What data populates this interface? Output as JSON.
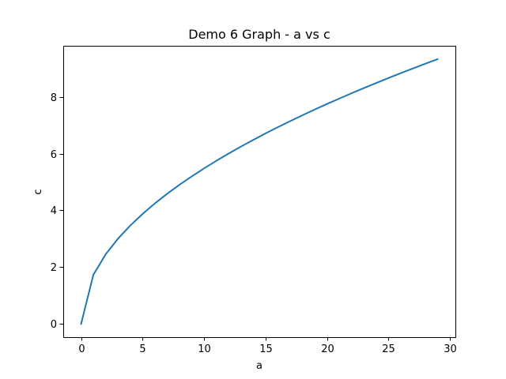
{
  "chart_data": {
    "type": "line",
    "title": "Demo 6 Graph - a vs c",
    "xlabel": "a",
    "ylabel": "c",
    "xlim": [
      -1.45,
      30.45
    ],
    "ylim": [
      -0.4665,
      9.7965
    ],
    "x_ticks": [
      0,
      5,
      10,
      15,
      20,
      25,
      30
    ],
    "y_ticks": [
      0,
      2,
      4,
      6,
      8
    ],
    "grid": false,
    "series": [
      {
        "color": "#1f77b4",
        "x": [
          0,
          1,
          2,
          3,
          4,
          5,
          6,
          7,
          8,
          9,
          10,
          11,
          12,
          13,
          14,
          15,
          16,
          17,
          18,
          19,
          20,
          21,
          22,
          23,
          24,
          25,
          26,
          27,
          28,
          29
        ],
        "y": [
          0,
          1.732,
          2.449,
          3.0,
          3.464,
          3.873,
          4.243,
          4.583,
          4.899,
          5.196,
          5.477,
          5.745,
          6.0,
          6.245,
          6.481,
          6.708,
          6.928,
          7.141,
          7.348,
          7.55,
          7.746,
          7.937,
          8.124,
          8.307,
          8.485,
          8.66,
          8.832,
          9.0,
          9.165,
          9.327
        ]
      }
    ]
  }
}
